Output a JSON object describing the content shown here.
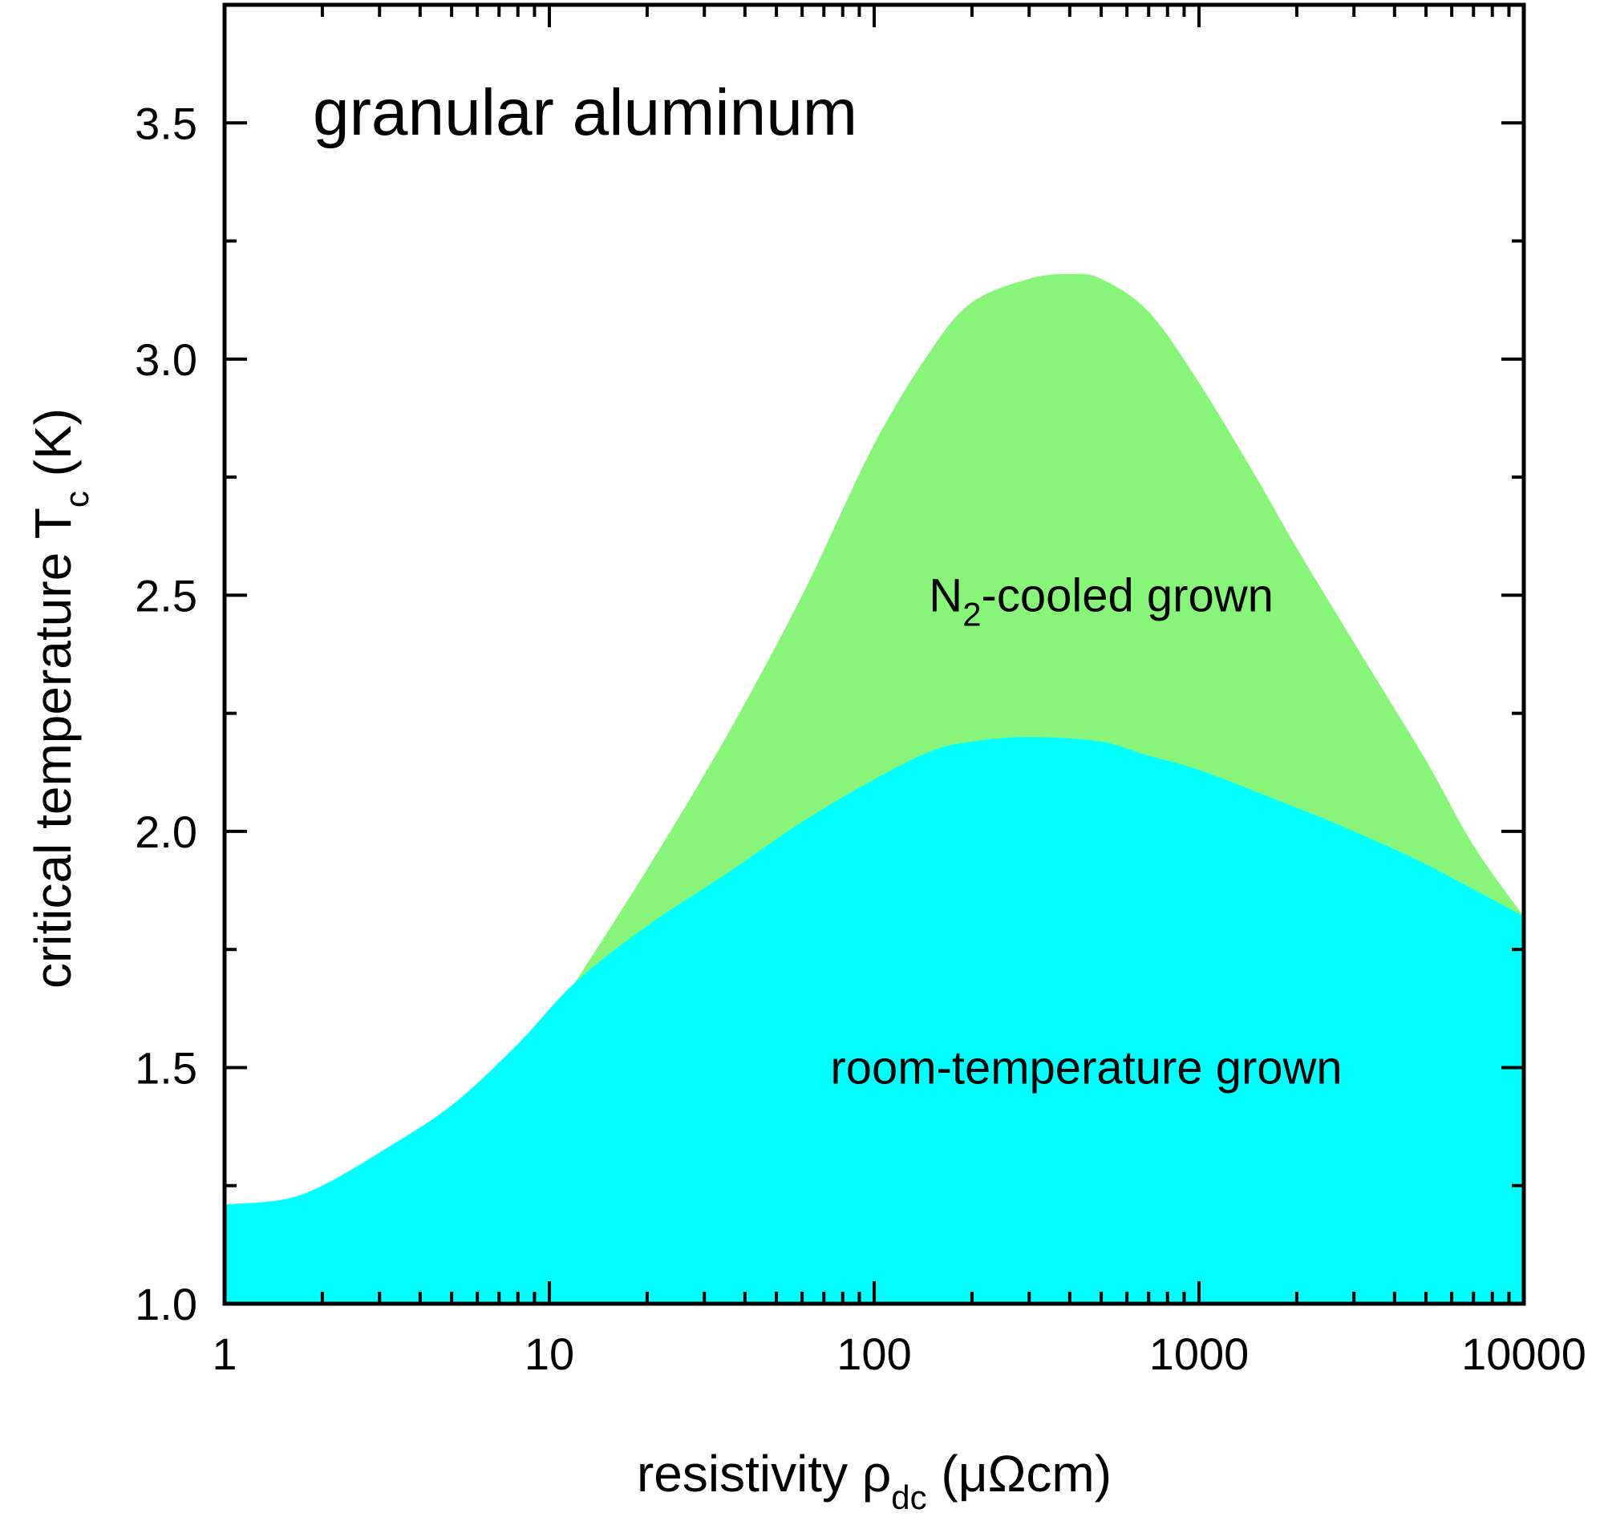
{
  "chart_data": {
    "type": "area",
    "title": "granular aluminum",
    "xlabel": {
      "main": "resistivity ρ",
      "sub": "dc",
      "unit": " (μΩcm)"
    },
    "ylabel": {
      "main": "critical temperature T",
      "sub": "c",
      "unit": " (K)"
    },
    "xscale": "log",
    "xlim": [
      1,
      10000
    ],
    "ylim": [
      1.0,
      3.75
    ],
    "xticks": [
      {
        "value": 1,
        "label": "1"
      },
      {
        "value": 10,
        "label": "10"
      },
      {
        "value": 100,
        "label": "100"
      },
      {
        "value": 1000,
        "label": "1000"
      },
      {
        "value": 10000,
        "label": "10000"
      }
    ],
    "yticks": [
      {
        "value": 1.0,
        "label": "1.0"
      },
      {
        "value": 1.5,
        "label": "1.5"
      },
      {
        "value": 2.0,
        "label": "2.0"
      },
      {
        "value": 2.5,
        "label": "2.5"
      },
      {
        "value": 3.0,
        "label": "3.0"
      },
      {
        "value": 3.5,
        "label": "3.5"
      }
    ],
    "grid": false,
    "series": [
      {
        "label_main": "N",
        "label_sub": "2",
        "label_rest": "-cooled grown",
        "label_at": {
          "x": 500,
          "y": 2.5
        },
        "color": "#88f57a",
        "x": [
          12,
          20,
          35,
          60,
          100,
          150,
          200,
          300,
          400,
          500,
          700,
          1000,
          1500,
          2000,
          3000,
          5000,
          7000,
          10000
        ],
        "y": [
          1.68,
          1.92,
          2.2,
          2.5,
          2.82,
          3.02,
          3.12,
          3.17,
          3.18,
          3.17,
          3.1,
          2.95,
          2.75,
          2.6,
          2.4,
          2.15,
          1.97,
          1.82
        ]
      },
      {
        "label": "room-temperature grown",
        "label_at": {
          "x": 450,
          "y": 1.5
        },
        "color": "#00ffff",
        "x": [
          1,
          1.5,
          2,
          3,
          5,
          8,
          12,
          20,
          35,
          60,
          100,
          150,
          200,
          300,
          500,
          700,
          1000,
          2000,
          3000,
          5000,
          10000
        ],
        "y": [
          1.21,
          1.22,
          1.25,
          1.32,
          1.42,
          1.55,
          1.68,
          1.8,
          1.91,
          2.02,
          2.11,
          2.17,
          2.19,
          2.2,
          2.19,
          2.16,
          2.13,
          2.05,
          2.0,
          1.93,
          1.82
        ]
      }
    ]
  }
}
